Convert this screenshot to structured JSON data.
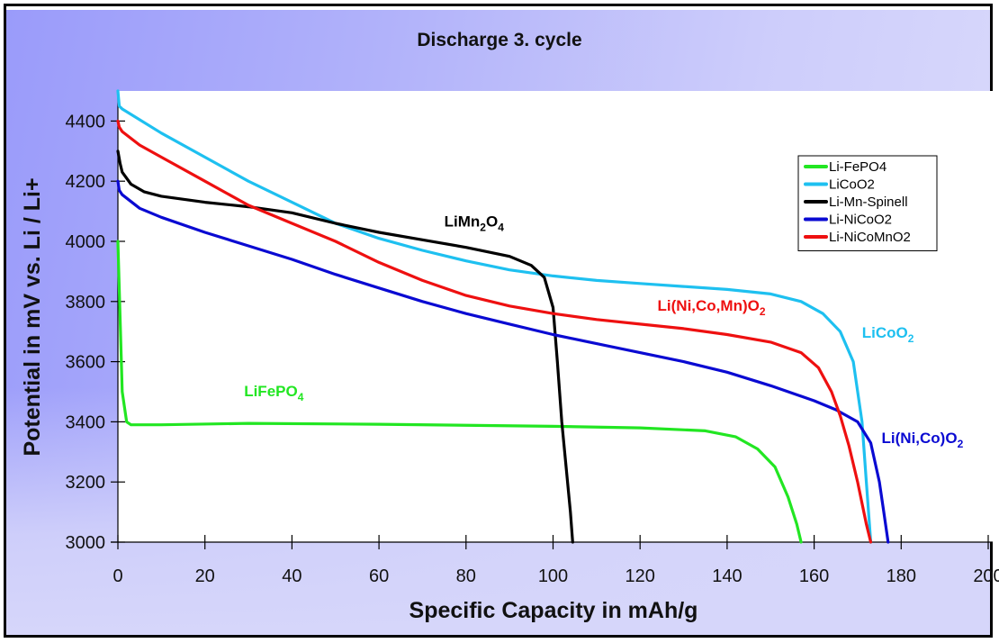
{
  "chart_data": {
    "type": "line",
    "title": "Discharge 3. cycle",
    "xlabel": "Specific Capacity in mAh/g",
    "ylabel": "Potential in mV vs. Li / Li+",
    "xlim": [
      0,
      200
    ],
    "ylim": [
      3000,
      4500
    ],
    "x_ticks": [
      0,
      20,
      40,
      60,
      80,
      100,
      120,
      140,
      160,
      180,
      200
    ],
    "x_tick_labels": [
      "0",
      "20",
      "40",
      "60",
      "80",
      "100",
      "120",
      "140",
      "160",
      "180",
      "200"
    ],
    "y_ticks": [
      3000,
      3200,
      3400,
      3600,
      3800,
      4000,
      4200,
      4400
    ],
    "y_tick_labels": [
      "3000",
      "3200",
      "3400",
      "3600",
      "3800",
      "4000",
      "4200",
      "4400"
    ],
    "grid": false,
    "legend_position": "top-right",
    "series": [
      {
        "name": "Li-FePO4",
        "color": "#22e622",
        "x": [
          0,
          0.5,
          1,
          2,
          3,
          10,
          30,
          60,
          100,
          120,
          135,
          142,
          147,
          151,
          154,
          156,
          157
        ],
        "y": [
          4000,
          3750,
          3500,
          3400,
          3390,
          3390,
          3395,
          3392,
          3385,
          3380,
          3370,
          3350,
          3310,
          3250,
          3150,
          3060,
          3000
        ]
      },
      {
        "name": "LiCoO2",
        "color": "#1ec0f0",
        "x": [
          0,
          0.3,
          1,
          10,
          20,
          30,
          40,
          50,
          60,
          70,
          80,
          90,
          100,
          110,
          120,
          130,
          140,
          150,
          157,
          162,
          166,
          169,
          171,
          172,
          173
        ],
        "y": [
          4500,
          4450,
          4440,
          4360,
          4280,
          4200,
          4130,
          4060,
          4010,
          3970,
          3935,
          3905,
          3885,
          3870,
          3860,
          3850,
          3840,
          3825,
          3800,
          3760,
          3700,
          3600,
          3400,
          3200,
          3000
        ]
      },
      {
        "name": "Li-Mn-Spinell",
        "color": "#000000",
        "x": [
          0,
          0.5,
          1,
          3,
          6,
          10,
          20,
          30,
          40,
          50,
          60,
          70,
          80,
          90,
          95,
          98,
          100,
          101,
          102,
          103,
          104,
          104.5
        ],
        "y": [
          4300,
          4260,
          4230,
          4190,
          4165,
          4150,
          4130,
          4115,
          4095,
          4060,
          4030,
          4005,
          3980,
          3950,
          3920,
          3880,
          3780,
          3600,
          3400,
          3250,
          3100,
          3000
        ]
      },
      {
        "name": "Li-NiCoO2",
        "color": "#0a0ad2",
        "x": [
          0,
          0.3,
          1,
          5,
          10,
          20,
          30,
          40,
          50,
          60,
          70,
          80,
          90,
          100,
          110,
          120,
          130,
          140,
          150,
          160,
          165,
          170,
          173,
          175,
          176,
          177
        ],
        "y": [
          4200,
          4170,
          4155,
          4110,
          4080,
          4030,
          3985,
          3940,
          3890,
          3845,
          3800,
          3760,
          3725,
          3690,
          3660,
          3630,
          3600,
          3565,
          3520,
          3470,
          3440,
          3400,
          3330,
          3200,
          3100,
          3000
        ]
      },
      {
        "name": "Li-NiCoMnO2",
        "color": "#ee1010",
        "x": [
          0,
          0.3,
          1,
          5,
          10,
          20,
          30,
          40,
          50,
          60,
          70,
          80,
          90,
          100,
          110,
          120,
          130,
          140,
          150,
          157,
          161,
          164,
          166,
          168,
          170,
          172,
          173
        ],
        "y": [
          4400,
          4380,
          4365,
          4320,
          4280,
          4200,
          4120,
          4060,
          4000,
          3930,
          3870,
          3820,
          3785,
          3760,
          3740,
          3725,
          3710,
          3690,
          3665,
          3630,
          3580,
          3500,
          3420,
          3320,
          3200,
          3060,
          3000
        ]
      }
    ],
    "annotations": [
      {
        "text": "LiMn",
        "sub1": "2",
        "text2": "O",
        "sub2": "4",
        "color": "#000000",
        "x": 75,
        "y": 4050
      },
      {
        "text": "Li(Ni,Co,Mn)O",
        "sub1": "2",
        "text2": "",
        "sub2": "",
        "color": "#ee1010",
        "x": 124,
        "y": 3770
      },
      {
        "text": "LiCoO",
        "sub1": "2",
        "text2": "",
        "sub2": "",
        "color": "#1ec0f0",
        "x": 171,
        "y": 3680
      },
      {
        "text": "LiFePO",
        "sub1": "4",
        "text2": "",
        "sub2": "",
        "color": "#22e622",
        "x": 29,
        "y": 3485
      },
      {
        "text": "Li(Ni,Co)O",
        "sub1": "2",
        "text2": "",
        "sub2": "",
        "color": "#0a0ad2",
        "x": 175.5,
        "y": 3330
      }
    ]
  }
}
